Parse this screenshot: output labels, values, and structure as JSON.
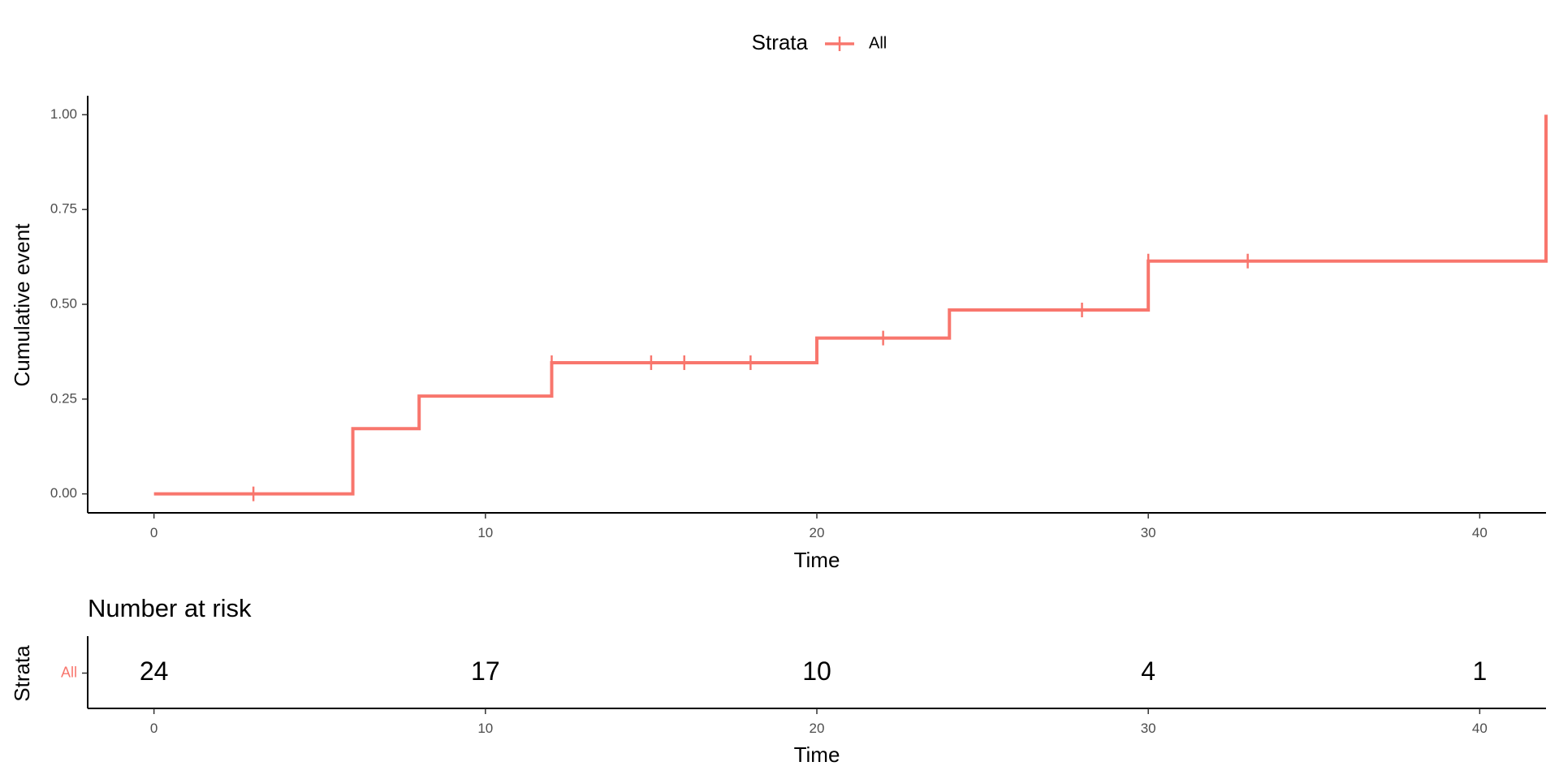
{
  "chart_data": [
    {
      "type": "line",
      "subtype": "step",
      "legend": {
        "title": "Strata",
        "position": "top",
        "entries": [
          {
            "label": "All",
            "color": "#F8766D"
          }
        ]
      },
      "xlabel": "Time",
      "ylabel": "Cumulative event",
      "xlim": [
        -2,
        42
      ],
      "ylim": [
        -0.05,
        1.05
      ],
      "x_ticks": [
        0,
        10,
        20,
        30,
        40
      ],
      "y_ticks": [
        0,
        0.25,
        0.5,
        0.75,
        1.0
      ],
      "y_tick_labels": [
        "0.00",
        "0.25",
        "0.50",
        "0.75",
        "1.00"
      ],
      "grid": false,
      "series": [
        {
          "name": "All",
          "color": "#F8766D",
          "steps": [
            {
              "x": 0,
              "y": 0
            },
            {
              "x": 6,
              "y": 0.172
            },
            {
              "x": 8,
              "y": 0.258
            },
            {
              "x": 12,
              "y": 0.346
            },
            {
              "x": 20,
              "y": 0.411
            },
            {
              "x": 24,
              "y": 0.485
            },
            {
              "x": 30,
              "y": 0.614
            },
            {
              "x": 42,
              "y": 1.0
            }
          ],
          "censor_times": [
            3,
            12,
            15,
            16,
            18,
            22,
            28,
            30,
            33
          ]
        }
      ]
    },
    {
      "type": "table",
      "title": "Number at risk",
      "xlabel": "Time",
      "ylabel": "Strata",
      "x_ticks": [
        0,
        10,
        20,
        30,
        40
      ],
      "rows": [
        {
          "strata": "All",
          "color": "#F8766D",
          "times": [
            0,
            10,
            20,
            30,
            40
          ],
          "values": [
            "24",
            "17",
            "10",
            "4",
            "1"
          ]
        }
      ]
    }
  ]
}
